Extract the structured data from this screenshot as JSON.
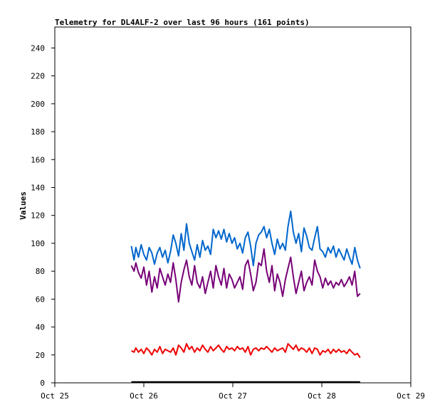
{
  "chart_data": {
    "type": "line",
    "title": "Telemetry for DL4ALF-2 over last 96 hours (161 points)",
    "ylabel": "Values",
    "xlabel": "",
    "ylim": [
      0,
      255
    ],
    "yticks": [
      0,
      20,
      40,
      60,
      80,
      100,
      120,
      140,
      160,
      180,
      200,
      220,
      240
    ],
    "xlim": [
      "Oct 25 00:00",
      "Oct 29 00:00"
    ],
    "xticks": [
      "Oct 25",
      "Oct 26",
      "Oct 27",
      "Oct 28",
      "Oct 29"
    ],
    "grid": false,
    "series": [
      {
        "color": "#0066cc",
        "values": [
          [
            0.86,
            98
          ],
          [
            0.89,
            88
          ],
          [
            0.91,
            97
          ],
          [
            0.94,
            90
          ],
          [
            0.97,
            99
          ],
          [
            1.0,
            92
          ],
          [
            1.03,
            88
          ],
          [
            1.06,
            97
          ],
          [
            1.09,
            93
          ],
          [
            1.12,
            85
          ],
          [
            1.15,
            93
          ],
          [
            1.18,
            97
          ],
          [
            1.21,
            90
          ],
          [
            1.24,
            95
          ],
          [
            1.27,
            86
          ],
          [
            1.3,
            94
          ],
          [
            1.33,
            106
          ],
          [
            1.36,
            100
          ],
          [
            1.39,
            91
          ],
          [
            1.42,
            107
          ],
          [
            1.45,
            95
          ],
          [
            1.48,
            114
          ],
          [
            1.51,
            100
          ],
          [
            1.54,
            94
          ],
          [
            1.57,
            88
          ],
          [
            1.6,
            99
          ],
          [
            1.63,
            90
          ],
          [
            1.66,
            102
          ],
          [
            1.69,
            95
          ],
          [
            1.72,
            98
          ],
          [
            1.75,
            92
          ],
          [
            1.78,
            110
          ],
          [
            1.81,
            104
          ],
          [
            1.84,
            109
          ],
          [
            1.87,
            103
          ],
          [
            1.9,
            110
          ],
          [
            1.93,
            101
          ],
          [
            1.96,
            107
          ],
          [
            1.99,
            100
          ],
          [
            2.02,
            104
          ],
          [
            2.05,
            96
          ],
          [
            2.08,
            100
          ],
          [
            2.11,
            93
          ],
          [
            2.14,
            104
          ],
          [
            2.17,
            108
          ],
          [
            2.2,
            98
          ],
          [
            2.23,
            84
          ],
          [
            2.26,
            100
          ],
          [
            2.29,
            106
          ],
          [
            2.32,
            108
          ],
          [
            2.35,
            112
          ],
          [
            2.38,
            104
          ],
          [
            2.41,
            110
          ],
          [
            2.44,
            100
          ],
          [
            2.47,
            92
          ],
          [
            2.5,
            103
          ],
          [
            2.53,
            96
          ],
          [
            2.56,
            100
          ],
          [
            2.59,
            95
          ],
          [
            2.62,
            112
          ],
          [
            2.65,
            123
          ],
          [
            2.68,
            108
          ],
          [
            2.71,
            100
          ],
          [
            2.74,
            107
          ],
          [
            2.77,
            94
          ],
          [
            2.8,
            111
          ],
          [
            2.83,
            105
          ],
          [
            2.86,
            97
          ],
          [
            2.89,
            95
          ],
          [
            2.92,
            104
          ],
          [
            2.95,
            112
          ],
          [
            2.98,
            96
          ],
          [
            3.01,
            94
          ],
          [
            3.04,
            90
          ],
          [
            3.07,
            97
          ],
          [
            3.1,
            93
          ],
          [
            3.13,
            98
          ],
          [
            3.16,
            90
          ],
          [
            3.19,
            96
          ],
          [
            3.22,
            92
          ],
          [
            3.25,
            88
          ],
          [
            3.28,
            96
          ],
          [
            3.31,
            90
          ],
          [
            3.34,
            85
          ],
          [
            3.37,
            97
          ],
          [
            3.4,
            88
          ],
          [
            3.43,
            82
          ]
        ]
      },
      {
        "color": "#770077",
        "values": [
          [
            0.86,
            84
          ],
          [
            0.89,
            80
          ],
          [
            0.91,
            86
          ],
          [
            0.94,
            79
          ],
          [
            0.97,
            75
          ],
          [
            1.0,
            83
          ],
          [
            1.03,
            70
          ],
          [
            1.06,
            80
          ],
          [
            1.09,
            65
          ],
          [
            1.12,
            76
          ],
          [
            1.15,
            68
          ],
          [
            1.18,
            82
          ],
          [
            1.21,
            76
          ],
          [
            1.24,
            70
          ],
          [
            1.27,
            78
          ],
          [
            1.3,
            72
          ],
          [
            1.33,
            86
          ],
          [
            1.36,
            74
          ],
          [
            1.39,
            58
          ],
          [
            1.42,
            72
          ],
          [
            1.45,
            81
          ],
          [
            1.48,
            88
          ],
          [
            1.51,
            76
          ],
          [
            1.54,
            70
          ],
          [
            1.57,
            84
          ],
          [
            1.6,
            72
          ],
          [
            1.63,
            68
          ],
          [
            1.66,
            76
          ],
          [
            1.69,
            64
          ],
          [
            1.72,
            72
          ],
          [
            1.75,
            80
          ],
          [
            1.78,
            68
          ],
          [
            1.81,
            84
          ],
          [
            1.84,
            76
          ],
          [
            1.87,
            70
          ],
          [
            1.9,
            82
          ],
          [
            1.93,
            68
          ],
          [
            1.96,
            78
          ],
          [
            1.99,
            74
          ],
          [
            2.02,
            68
          ],
          [
            2.05,
            72
          ],
          [
            2.08,
            76
          ],
          [
            2.11,
            67
          ],
          [
            2.14,
            84
          ],
          [
            2.17,
            88
          ],
          [
            2.2,
            78
          ],
          [
            2.23,
            66
          ],
          [
            2.26,
            72
          ],
          [
            2.29,
            86
          ],
          [
            2.32,
            84
          ],
          [
            2.35,
            96
          ],
          [
            2.38,
            80
          ],
          [
            2.41,
            72
          ],
          [
            2.44,
            84
          ],
          [
            2.47,
            66
          ],
          [
            2.5,
            78
          ],
          [
            2.53,
            72
          ],
          [
            2.56,
            62
          ],
          [
            2.59,
            74
          ],
          [
            2.62,
            82
          ],
          [
            2.65,
            90
          ],
          [
            2.68,
            76
          ],
          [
            2.71,
            64
          ],
          [
            2.74,
            72
          ],
          [
            2.77,
            80
          ],
          [
            2.8,
            66
          ],
          [
            2.83,
            72
          ],
          [
            2.86,
            76
          ],
          [
            2.89,
            70
          ],
          [
            2.92,
            88
          ],
          [
            2.95,
            80
          ],
          [
            2.98,
            76
          ],
          [
            3.01,
            68
          ],
          [
            3.04,
            75
          ],
          [
            3.07,
            70
          ],
          [
            3.1,
            73
          ],
          [
            3.13,
            68
          ],
          [
            3.16,
            72
          ],
          [
            3.19,
            70
          ],
          [
            3.22,
            74
          ],
          [
            3.25,
            69
          ],
          [
            3.28,
            72
          ],
          [
            3.31,
            76
          ],
          [
            3.34,
            70
          ],
          [
            3.37,
            80
          ],
          [
            3.4,
            62
          ],
          [
            3.43,
            64
          ]
        ]
      },
      {
        "color": "#ee0000",
        "values": [
          [
            0.86,
            23
          ],
          [
            0.89,
            22
          ],
          [
            0.91,
            25
          ],
          [
            0.94,
            22
          ],
          [
            0.97,
            24
          ],
          [
            1.0,
            21
          ],
          [
            1.03,
            25
          ],
          [
            1.06,
            23
          ],
          [
            1.09,
            20
          ],
          [
            1.12,
            24
          ],
          [
            1.15,
            22
          ],
          [
            1.18,
            26
          ],
          [
            1.21,
            21
          ],
          [
            1.24,
            24
          ],
          [
            1.27,
            23
          ],
          [
            1.3,
            22
          ],
          [
            1.33,
            25
          ],
          [
            1.36,
            20
          ],
          [
            1.39,
            27
          ],
          [
            1.42,
            25
          ],
          [
            1.45,
            22
          ],
          [
            1.48,
            28
          ],
          [
            1.51,
            24
          ],
          [
            1.54,
            26
          ],
          [
            1.57,
            22
          ],
          [
            1.6,
            25
          ],
          [
            1.63,
            23
          ],
          [
            1.66,
            27
          ],
          [
            1.69,
            24
          ],
          [
            1.72,
            22
          ],
          [
            1.75,
            26
          ],
          [
            1.78,
            23
          ],
          [
            1.81,
            25
          ],
          [
            1.84,
            27
          ],
          [
            1.87,
            24
          ],
          [
            1.9,
            22
          ],
          [
            1.93,
            26
          ],
          [
            1.96,
            24
          ],
          [
            1.99,
            25
          ],
          [
            2.02,
            23
          ],
          [
            2.05,
            26
          ],
          [
            2.08,
            24
          ],
          [
            2.11,
            25
          ],
          [
            2.14,
            22
          ],
          [
            2.17,
            26
          ],
          [
            2.2,
            20
          ],
          [
            2.23,
            24
          ],
          [
            2.26,
            25
          ],
          [
            2.29,
            23
          ],
          [
            2.32,
            25
          ],
          [
            2.35,
            24
          ],
          [
            2.38,
            26
          ],
          [
            2.41,
            24
          ],
          [
            2.44,
            22
          ],
          [
            2.47,
            25
          ],
          [
            2.5,
            23
          ],
          [
            2.53,
            24
          ],
          [
            2.56,
            25
          ],
          [
            2.59,
            22
          ],
          [
            2.62,
            28
          ],
          [
            2.65,
            26
          ],
          [
            2.68,
            24
          ],
          [
            2.71,
            27
          ],
          [
            2.74,
            23
          ],
          [
            2.77,
            25
          ],
          [
            2.8,
            24
          ],
          [
            2.83,
            22
          ],
          [
            2.86,
            25
          ],
          [
            2.89,
            21
          ],
          [
            2.92,
            25
          ],
          [
            2.95,
            24
          ],
          [
            2.98,
            20
          ],
          [
            3.01,
            23
          ],
          [
            3.04,
            22
          ],
          [
            3.07,
            24
          ],
          [
            3.1,
            21
          ],
          [
            3.13,
            24
          ],
          [
            3.16,
            22
          ],
          [
            3.19,
            24
          ],
          [
            3.22,
            22
          ],
          [
            3.25,
            23
          ],
          [
            3.28,
            21
          ],
          [
            3.31,
            24
          ],
          [
            3.34,
            22
          ],
          [
            3.37,
            20
          ],
          [
            3.4,
            21
          ],
          [
            3.43,
            18
          ]
        ]
      },
      {
        "color": "#000000",
        "values": [
          [
            0.86,
            0.6
          ],
          [
            3.43,
            0.6
          ]
        ]
      }
    ]
  }
}
